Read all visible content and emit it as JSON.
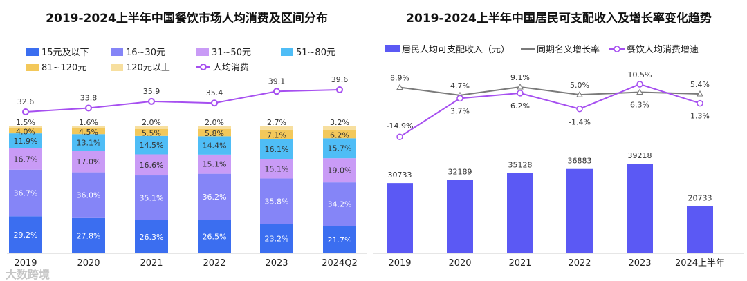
{
  "chart_data": [
    {
      "type": "bar",
      "stacked": true,
      "title": "2019-2024上半年中国餐饮市场人均消费及区间分布",
      "categories": [
        "2019",
        "2020",
        "2021",
        "2022",
        "2023",
        "2024Q2"
      ],
      "series": [
        {
          "name": "15元及以下",
          "color": "#3b6ef0",
          "values": [
            29.2,
            27.8,
            26.3,
            26.5,
            23.2,
            21.7
          ]
        },
        {
          "name": "16~30元",
          "color": "#8585f7",
          "values": [
            36.7,
            36.0,
            35.1,
            36.2,
            35.8,
            34.2
          ]
        },
        {
          "name": "31~50元",
          "color": "#c99bf6",
          "values": [
            16.7,
            17.0,
            16.6,
            15.1,
            15.1,
            19.0
          ]
        },
        {
          "name": "51~80元",
          "color": "#4fbdf6",
          "values": [
            11.9,
            13.1,
            14.5,
            14.4,
            16.1,
            15.7
          ]
        },
        {
          "name": "81~120元",
          "color": "#f3c85a",
          "values": [
            4.0,
            4.5,
            5.5,
            5.8,
            7.1,
            6.2
          ]
        },
        {
          "name": "120元以上",
          "color": "#f7df9f",
          "values": [
            1.5,
            1.6,
            2.0,
            2.0,
            2.7,
            3.2
          ]
        }
      ],
      "line": {
        "name": "人均消费",
        "color": "#a64ff0",
        "values": [
          32.6,
          33.8,
          35.9,
          35.4,
          39.1,
          39.6
        ]
      },
      "unit": "%",
      "legend": "top"
    },
    {
      "type": "bar",
      "title": "2019-2024上半年中国居民可支配收入及增长率变化趋势",
      "categories": [
        "2019",
        "2020",
        "2021",
        "2022",
        "2023",
        "2024上半年"
      ],
      "bars": {
        "name": "居民人均可支配收入（元）",
        "color": "#5b59f4",
        "values": [
          30733,
          32189,
          35128,
          36883,
          39218,
          20733
        ]
      },
      "lines": [
        {
          "name": "同期名义增长率",
          "color": "#7a7a7a",
          "marker": "triangle",
          "values": [
            8.9,
            4.7,
            9.1,
            5.0,
            6.3,
            5.4
          ],
          "labels": [
            "8.9%",
            "4.7%",
            "9.1%",
            "5.0%",
            "6.3%",
            "5.4%"
          ]
        },
        {
          "name": "餐饮人均消费增速",
          "color": "#a64ff0",
          "marker": "circle",
          "values": [
            -14.9,
            3.7,
            6.2,
            -1.4,
            10.5,
            1.3
          ],
          "labels": [
            "-14.9%",
            "3.7%",
            "6.2%",
            "-1.4%",
            "10.5%",
            "1.3%"
          ]
        }
      ],
      "legend": "top"
    }
  ],
  "watermark": "大数跨境"
}
